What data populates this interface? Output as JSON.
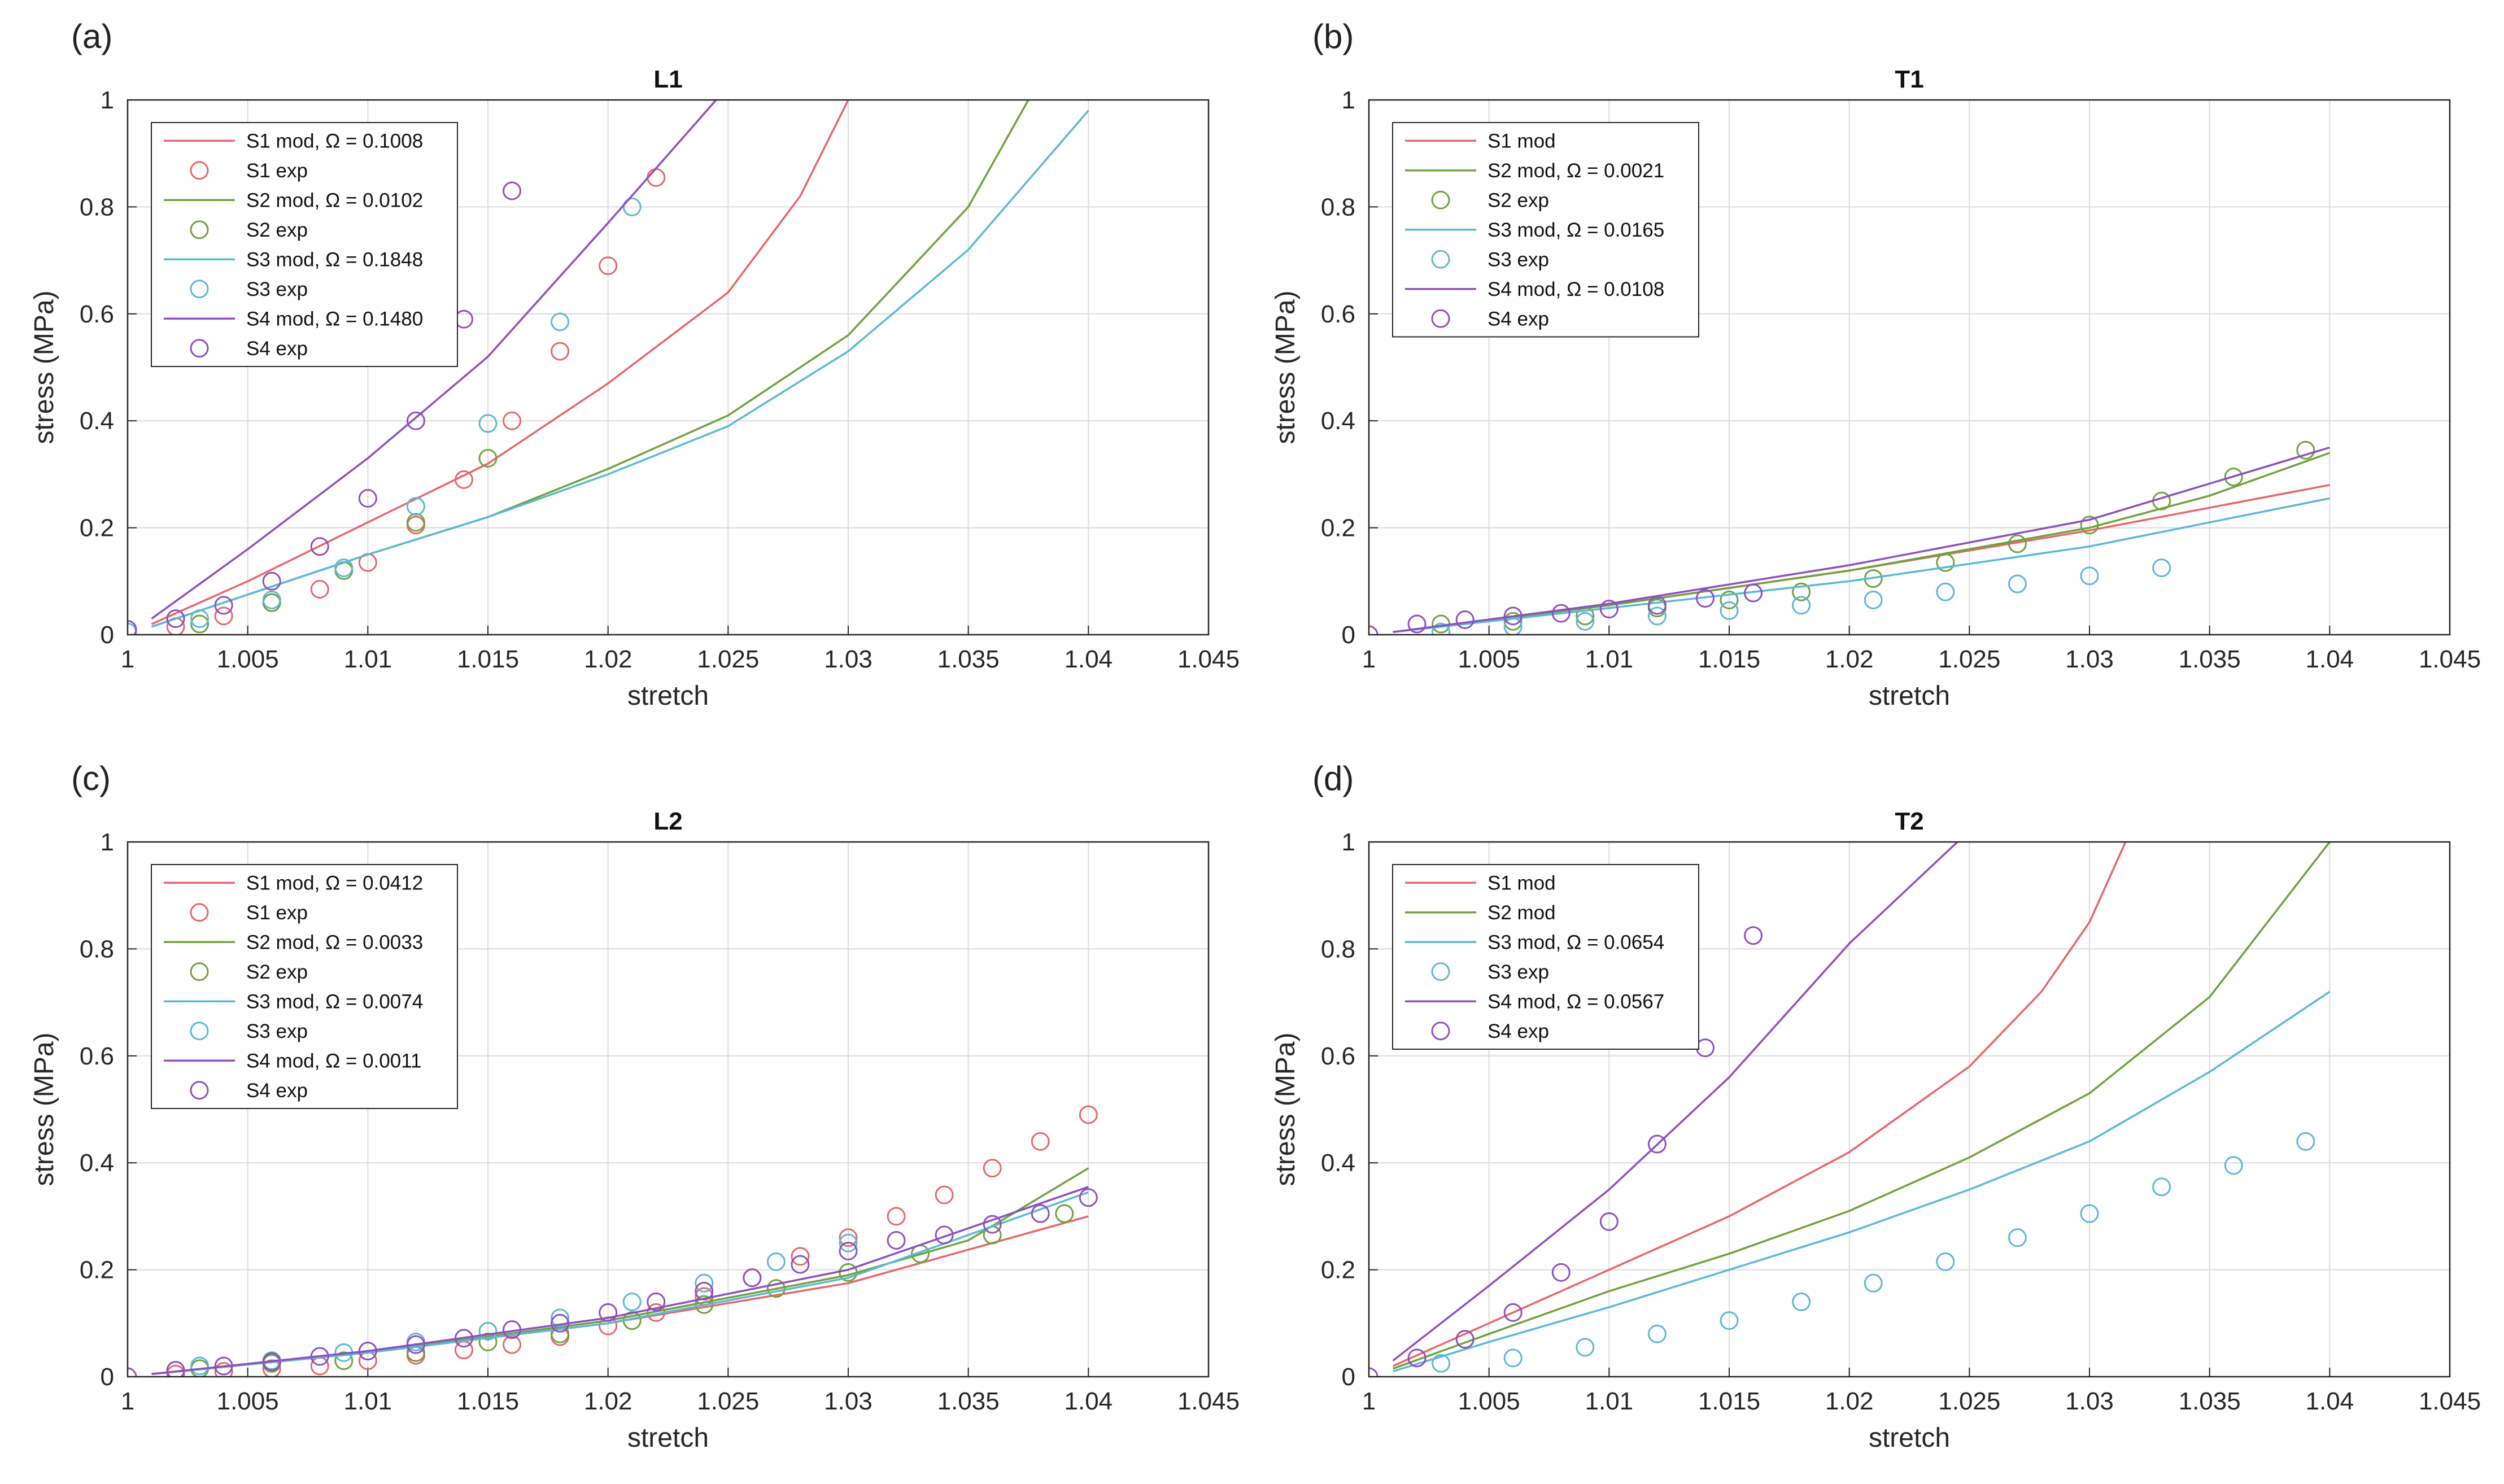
{
  "panels": [
    {
      "letter": "(a)",
      "title": "L1",
      "xlabel": "stretch",
      "ylabel": "stress (MPa)",
      "xlim": [
        1,
        1.045
      ],
      "ylim": [
        0,
        1
      ],
      "xticks": [
        "1",
        "1.005",
        "1.01",
        "1.015",
        "1.02",
        "1.025",
        "1.03",
        "1.035",
        "1.04",
        "1.045"
      ],
      "yticks": [
        "0",
        "0.2",
        "0.4",
        "0.6",
        "0.8",
        "1"
      ]
    },
    {
      "letter": "(b)",
      "title": "T1",
      "xlabel": "stretch",
      "ylabel": "stress (MPa)",
      "xlim": [
        1,
        1.045
      ],
      "ylim": [
        0,
        1
      ],
      "xticks": [
        "1",
        "1.005",
        "1.01",
        "1.015",
        "1.02",
        "1.025",
        "1.03",
        "1.035",
        "1.04",
        "1.045"
      ],
      "yticks": [
        "0",
        "0.2",
        "0.4",
        "0.6",
        "0.8",
        "1"
      ]
    },
    {
      "letter": "(c)",
      "title": "L2",
      "xlabel": "stretch",
      "ylabel": "stress (MPa)",
      "xlim": [
        1,
        1.045
      ],
      "ylim": [
        0,
        1
      ],
      "xticks": [
        "1",
        "1.005",
        "1.01",
        "1.015",
        "1.02",
        "1.025",
        "1.03",
        "1.035",
        "1.04",
        "1.045"
      ],
      "yticks": [
        "0",
        "0.2",
        "0.4",
        "0.6",
        "0.8",
        "1"
      ]
    },
    {
      "letter": "(d)",
      "title": "T2",
      "xlabel": "stretch",
      "ylabel": "stress (MPa)",
      "xlim": [
        1,
        1.045
      ],
      "ylim": [
        0,
        1
      ],
      "xticks": [
        "1",
        "1.005",
        "1.01",
        "1.015",
        "1.02",
        "1.025",
        "1.03",
        "1.035",
        "1.04",
        "1.045"
      ],
      "yticks": [
        "0",
        "0.2",
        "0.4",
        "0.6",
        "0.8",
        "1"
      ]
    }
  ],
  "colors": {
    "S1": "#e8666a",
    "S2": "#6fa23c",
    "S3": "#5cb8d6",
    "S4": "#8e4fc2"
  },
  "chart_data": [
    {
      "type": "line",
      "title": "L1",
      "xlabel": "stretch",
      "ylabel": "stress (MPa)",
      "xlim": [
        1,
        1.045
      ],
      "ylim": [
        0,
        1
      ],
      "grid": true,
      "legend_position": "top-left",
      "legend": [
        "S1 mod, Ω = 0.1008",
        "S1 exp",
        "S2 mod, Ω = 0.0102",
        "S2 exp",
        "S3 mod, Ω = 0.1848",
        "S3 exp",
        "S4 mod, Ω = 0.1480",
        "S4 exp"
      ],
      "series": [
        {
          "name": "S1 mod, Ω = 0.1008",
          "kind": "line",
          "sample": "S1",
          "x": [
            1.001,
            1.005,
            1.01,
            1.015,
            1.02,
            1.025,
            1.028,
            1.03
          ],
          "y": [
            0.02,
            0.1,
            0.21,
            0.32,
            0.47,
            0.64,
            0.82,
            1.0
          ]
        },
        {
          "name": "S1 exp",
          "kind": "marker",
          "sample": "S1",
          "x": [
            1.002,
            1.004,
            1.006,
            1.008,
            1.01,
            1.012,
            1.014,
            1.016,
            1.018,
            1.02,
            1.022
          ],
          "y": [
            0.015,
            0.035,
            0.06,
            0.085,
            0.135,
            0.205,
            0.29,
            0.4,
            0.53,
            0.69,
            0.855
          ]
        },
        {
          "name": "S2 mod, Ω = 0.0102",
          "kind": "line",
          "sample": "S2",
          "x": [
            1.001,
            1.005,
            1.01,
            1.015,
            1.02,
            1.025,
            1.03,
            1.035,
            1.0375
          ],
          "y": [
            0.015,
            0.075,
            0.15,
            0.22,
            0.31,
            0.41,
            0.56,
            0.8,
            1.0
          ]
        },
        {
          "name": "S2 exp",
          "kind": "marker",
          "sample": "S2",
          "x": [
            1.003,
            1.006,
            1.009,
            1.012,
            1.015
          ],
          "y": [
            0.02,
            0.06,
            0.12,
            0.21,
            0.33
          ]
        },
        {
          "name": "S3 mod, Ω = 0.1848",
          "kind": "line",
          "sample": "S3",
          "x": [
            1.001,
            1.005,
            1.01,
            1.015,
            1.02,
            1.025,
            1.03,
            1.035,
            1.04
          ],
          "y": [
            0.015,
            0.075,
            0.15,
            0.22,
            0.3,
            0.39,
            0.53,
            0.72,
            0.98
          ]
        },
        {
          "name": "S3 exp",
          "kind": "marker",
          "sample": "S3",
          "x": [
            1.0,
            1.003,
            1.006,
            1.009,
            1.012,
            1.015,
            1.018,
            1.021
          ],
          "y": [
            0.005,
            0.03,
            0.065,
            0.125,
            0.24,
            0.395,
            0.585,
            0.8
          ]
        },
        {
          "name": "S4 mod, Ω = 0.1480",
          "kind": "line",
          "sample": "S4",
          "x": [
            1.001,
            1.005,
            1.01,
            1.015,
            1.02,
            1.0245
          ],
          "y": [
            0.03,
            0.16,
            0.33,
            0.52,
            0.77,
            1.0
          ]
        },
        {
          "name": "S4 exp",
          "kind": "marker",
          "sample": "S4",
          "x": [
            1.0,
            1.002,
            1.004,
            1.006,
            1.008,
            1.01,
            1.012,
            1.014,
            1.016
          ],
          "y": [
            0.01,
            0.03,
            0.055,
            0.1,
            0.165,
            0.255,
            0.4,
            0.59,
            0.83
          ]
        }
      ]
    },
    {
      "type": "line",
      "title": "T1",
      "xlabel": "stretch",
      "ylabel": "stress (MPa)",
      "xlim": [
        1,
        1.045
      ],
      "ylim": [
        0,
        1
      ],
      "grid": true,
      "legend_position": "top-left",
      "legend": [
        "S1 mod",
        "S2 mod, Ω = 0.0021",
        "S2 exp",
        "S3 mod, Ω = 0.0165",
        "S3 exp",
        "S4 mod, Ω = 0.0108",
        "S4 exp"
      ],
      "series": [
        {
          "name": "S1 mod",
          "kind": "line",
          "sample": "S1",
          "x": [
            1.001,
            1.01,
            1.02,
            1.03,
            1.04
          ],
          "y": [
            0.005,
            0.055,
            0.12,
            0.195,
            0.28
          ]
        },
        {
          "name": "S2 mod, Ω = 0.0021",
          "kind": "line",
          "sample": "S2",
          "x": [
            1.001,
            1.01,
            1.02,
            1.03,
            1.035,
            1.04
          ],
          "y": [
            0.005,
            0.055,
            0.12,
            0.2,
            0.26,
            0.34
          ]
        },
        {
          "name": "S2 exp",
          "kind": "marker",
          "sample": "S2",
          "x": [
            1.003,
            1.006,
            1.009,
            1.012,
            1.015,
            1.018,
            1.021,
            1.024,
            1.027,
            1.03,
            1.033,
            1.036,
            1.039
          ],
          "y": [
            0.02,
            0.025,
            0.035,
            0.05,
            0.065,
            0.08,
            0.105,
            0.135,
            0.17,
            0.205,
            0.25,
            0.295,
            0.345
          ]
        },
        {
          "name": "S3 mod, Ω = 0.0165",
          "kind": "line",
          "sample": "S3",
          "x": [
            1.001,
            1.01,
            1.02,
            1.03,
            1.04
          ],
          "y": [
            0.005,
            0.05,
            0.1,
            0.165,
            0.255
          ]
        },
        {
          "name": "S3 exp",
          "kind": "marker",
          "sample": "S3",
          "x": [
            1.003,
            1.006,
            1.009,
            1.012,
            1.015,
            1.018,
            1.021,
            1.024,
            1.027,
            1.03,
            1.033
          ],
          "y": [
            0.005,
            0.015,
            0.025,
            0.035,
            0.045,
            0.055,
            0.065,
            0.08,
            0.095,
            0.11,
            0.125
          ]
        },
        {
          "name": "S4 mod, Ω = 0.0108",
          "kind": "line",
          "sample": "S4",
          "x": [
            1.001,
            1.01,
            1.02,
            1.03,
            1.04
          ],
          "y": [
            0.005,
            0.058,
            0.13,
            0.215,
            0.35
          ]
        },
        {
          "name": "S4 exp",
          "kind": "marker",
          "sample": "S4",
          "x": [
            1.0,
            1.002,
            1.004,
            1.006,
            1.008,
            1.01,
            1.012,
            1.014,
            1.016
          ],
          "y": [
            0.0,
            0.02,
            0.028,
            0.035,
            0.04,
            0.048,
            0.055,
            0.068,
            0.078
          ]
        }
      ]
    },
    {
      "type": "line",
      "title": "L2",
      "xlabel": "stretch",
      "ylabel": "stress (MPa)",
      "xlim": [
        1,
        1.045
      ],
      "ylim": [
        0,
        1
      ],
      "grid": true,
      "legend_position": "top-left",
      "legend": [
        "S1 mod, Ω = 0.0412",
        "S1 exp",
        "S2 mod, Ω = 0.0033",
        "S2 exp",
        "S3 mod, Ω = 0.0074",
        "S3 exp",
        "S4 mod, Ω = 0.0011",
        "S4 exp"
      ],
      "series": [
        {
          "name": "S1 mod, Ω = 0.0412",
          "kind": "line",
          "sample": "S1",
          "x": [
            1.001,
            1.01,
            1.02,
            1.03,
            1.04
          ],
          "y": [
            0.005,
            0.045,
            0.1,
            0.175,
            0.3
          ]
        },
        {
          "name": "S1 exp",
          "kind": "marker",
          "sample": "S1",
          "x": [
            1.002,
            1.004,
            1.006,
            1.008,
            1.01,
            1.012,
            1.014,
            1.016,
            1.018,
            1.02,
            1.022,
            1.024,
            1.026,
            1.028,
            1.03,
            1.032,
            1.034,
            1.036,
            1.038,
            1.04
          ],
          "y": [
            0.005,
            0.01,
            0.015,
            0.02,
            0.03,
            0.04,
            0.05,
            0.06,
            0.075,
            0.095,
            0.12,
            0.15,
            0.185,
            0.225,
            0.26,
            0.3,
            0.34,
            0.39,
            0.44,
            0.49
          ]
        },
        {
          "name": "S2 mod, Ω = 0.0033",
          "kind": "line",
          "sample": "S2",
          "x": [
            1.001,
            1.01,
            1.02,
            1.03,
            1.035,
            1.04
          ],
          "y": [
            0.005,
            0.045,
            0.105,
            0.19,
            0.255,
            0.39
          ]
        },
        {
          "name": "S2 exp",
          "kind": "marker",
          "sample": "S2",
          "x": [
            1.003,
            1.006,
            1.009,
            1.012,
            1.015,
            1.018,
            1.021,
            1.024,
            1.027,
            1.03,
            1.033,
            1.036,
            1.039
          ],
          "y": [
            0.015,
            0.025,
            0.03,
            0.045,
            0.065,
            0.08,
            0.105,
            0.135,
            0.165,
            0.195,
            0.23,
            0.265,
            0.305
          ]
        },
        {
          "name": "S3 mod, Ω = 0.0074",
          "kind": "line",
          "sample": "S3",
          "x": [
            1.001,
            1.01,
            1.02,
            1.03,
            1.04
          ],
          "y": [
            0.005,
            0.045,
            0.1,
            0.185,
            0.345
          ]
        },
        {
          "name": "S3 exp",
          "kind": "marker",
          "sample": "S3",
          "x": [
            1.003,
            1.006,
            1.009,
            1.012,
            1.015,
            1.018,
            1.021,
            1.024,
            1.027,
            1.03
          ],
          "y": [
            0.02,
            0.03,
            0.045,
            0.065,
            0.085,
            0.11,
            0.14,
            0.175,
            0.215,
            0.25
          ]
        },
        {
          "name": "S4 mod, Ω = 0.0011",
          "kind": "line",
          "sample": "S4",
          "x": [
            1.001,
            1.01,
            1.02,
            1.03,
            1.04
          ],
          "y": [
            0.005,
            0.048,
            0.11,
            0.2,
            0.355
          ]
        },
        {
          "name": "S4 exp",
          "kind": "marker",
          "sample": "S4",
          "x": [
            1.0,
            1.002,
            1.004,
            1.006,
            1.008,
            1.01,
            1.012,
            1.014,
            1.016,
            1.018,
            1.02,
            1.022,
            1.024,
            1.026,
            1.028,
            1.03,
            1.032,
            1.034,
            1.036,
            1.038,
            1.04
          ],
          "y": [
            0.0,
            0.012,
            0.02,
            0.028,
            0.038,
            0.048,
            0.06,
            0.072,
            0.088,
            0.1,
            0.12,
            0.14,
            0.16,
            0.185,
            0.21,
            0.235,
            0.255,
            0.265,
            0.285,
            0.305,
            0.335
          ]
        }
      ]
    },
    {
      "type": "line",
      "title": "T2",
      "xlabel": "stretch",
      "ylabel": "stress (MPa)",
      "xlim": [
        1,
        1.045
      ],
      "ylim": [
        0,
        1
      ],
      "grid": true,
      "legend_position": "top-left",
      "legend": [
        "S1 mod",
        "S2 mod",
        "S3 mod, Ω = 0.0654",
        "S3 exp",
        "S4 mod, Ω = 0.0567",
        "S4 exp"
      ],
      "series": [
        {
          "name": "S1 mod",
          "kind": "line",
          "sample": "S1",
          "x": [
            1.001,
            1.005,
            1.01,
            1.015,
            1.02,
            1.025,
            1.028,
            1.03,
            1.0315
          ],
          "y": [
            0.02,
            0.1,
            0.2,
            0.3,
            0.42,
            0.58,
            0.72,
            0.85,
            1.0
          ]
        },
        {
          "name": "S2 mod",
          "kind": "line",
          "sample": "S2",
          "x": [
            1.001,
            1.005,
            1.01,
            1.015,
            1.02,
            1.025,
            1.03,
            1.035,
            1.04
          ],
          "y": [
            0.015,
            0.08,
            0.16,
            0.23,
            0.31,
            0.41,
            0.53,
            0.71,
            1.0
          ]
        },
        {
          "name": "S3 mod, Ω = 0.0654",
          "kind": "line",
          "sample": "S3",
          "x": [
            1.001,
            1.005,
            1.01,
            1.015,
            1.02,
            1.025,
            1.03,
            1.035,
            1.04
          ],
          "y": [
            0.01,
            0.065,
            0.13,
            0.2,
            0.27,
            0.35,
            0.44,
            0.57,
            0.72
          ]
        },
        {
          "name": "S3 exp",
          "kind": "marker",
          "sample": "S3",
          "x": [
            1.003,
            1.006,
            1.009,
            1.012,
            1.015,
            1.018,
            1.021,
            1.024,
            1.027,
            1.03,
            1.033,
            1.036,
            1.039
          ],
          "y": [
            0.025,
            0.035,
            0.055,
            0.08,
            0.105,
            0.14,
            0.175,
            0.215,
            0.26,
            0.305,
            0.355,
            0.395,
            0.44
          ]
        },
        {
          "name": "S4 mod, Ω = 0.0567",
          "kind": "line",
          "sample": "S4",
          "x": [
            1.001,
            1.005,
            1.01,
            1.015,
            1.02,
            1.0245
          ],
          "y": [
            0.03,
            0.17,
            0.35,
            0.56,
            0.81,
            1.0
          ]
        },
        {
          "name": "S4 exp",
          "kind": "marker",
          "sample": "S4",
          "x": [
            1.0,
            1.002,
            1.004,
            1.006,
            1.008,
            1.01,
            1.012,
            1.014,
            1.016
          ],
          "y": [
            0.0,
            0.035,
            0.07,
            0.12,
            0.195,
            0.29,
            0.435,
            0.615,
            0.825
          ]
        }
      ]
    }
  ]
}
